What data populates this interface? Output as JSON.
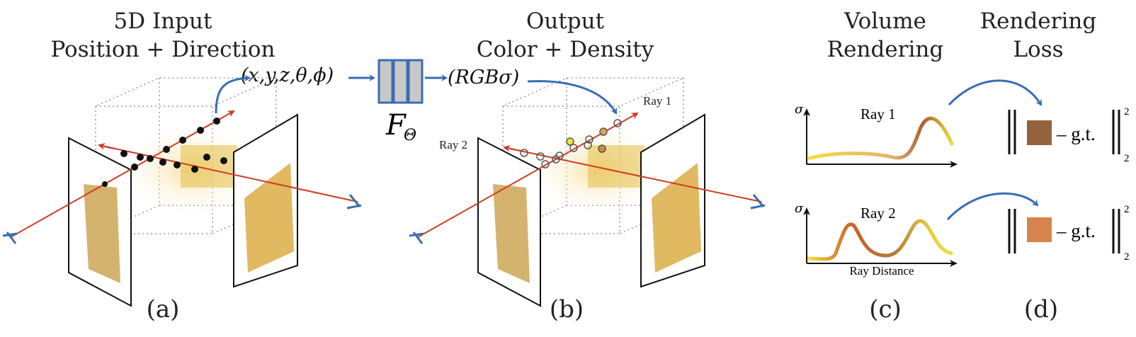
{
  "panels": {
    "a": {
      "title_line1": "5D Input",
      "title_line2": "Position + Direction",
      "caption": "(a)"
    },
    "b": {
      "title_line1": "Output",
      "title_line2": "Color + Density",
      "caption": "(b)"
    },
    "c": {
      "title_line1": "Volume",
      "title_line2": "Rendering",
      "caption": "(c)"
    },
    "d": {
      "title_line1": "Rendering",
      "title_line2": "Loss",
      "caption": "(d)"
    }
  },
  "input_tuple": "(x,y,z,θ,ϕ)",
  "network_label": "F",
  "network_subscript": "Θ",
  "output_tuple": "(RGBσ)",
  "scene_b": {
    "ray1_label": "Ray 1",
    "ray2_label": "Ray 2"
  },
  "plots": {
    "y_axis_symbol": "σ",
    "x_axis_label": "Ray Distance",
    "ray1_title": "Ray 1",
    "ray2_title": "Ray 2"
  },
  "loss": {
    "minus_gt": "– g.t.",
    "superscript": "2",
    "subscript": "2",
    "ray1_color": "#93633e",
    "ray2_color": "#d4844c"
  },
  "colors": {
    "arrow_blue": "#3a6db3",
    "ray_red": "#d13b25",
    "network_fill": "#c8c8c8",
    "curve_yellow": "#f0dc3c",
    "curve_brown": "#a8602e"
  }
}
